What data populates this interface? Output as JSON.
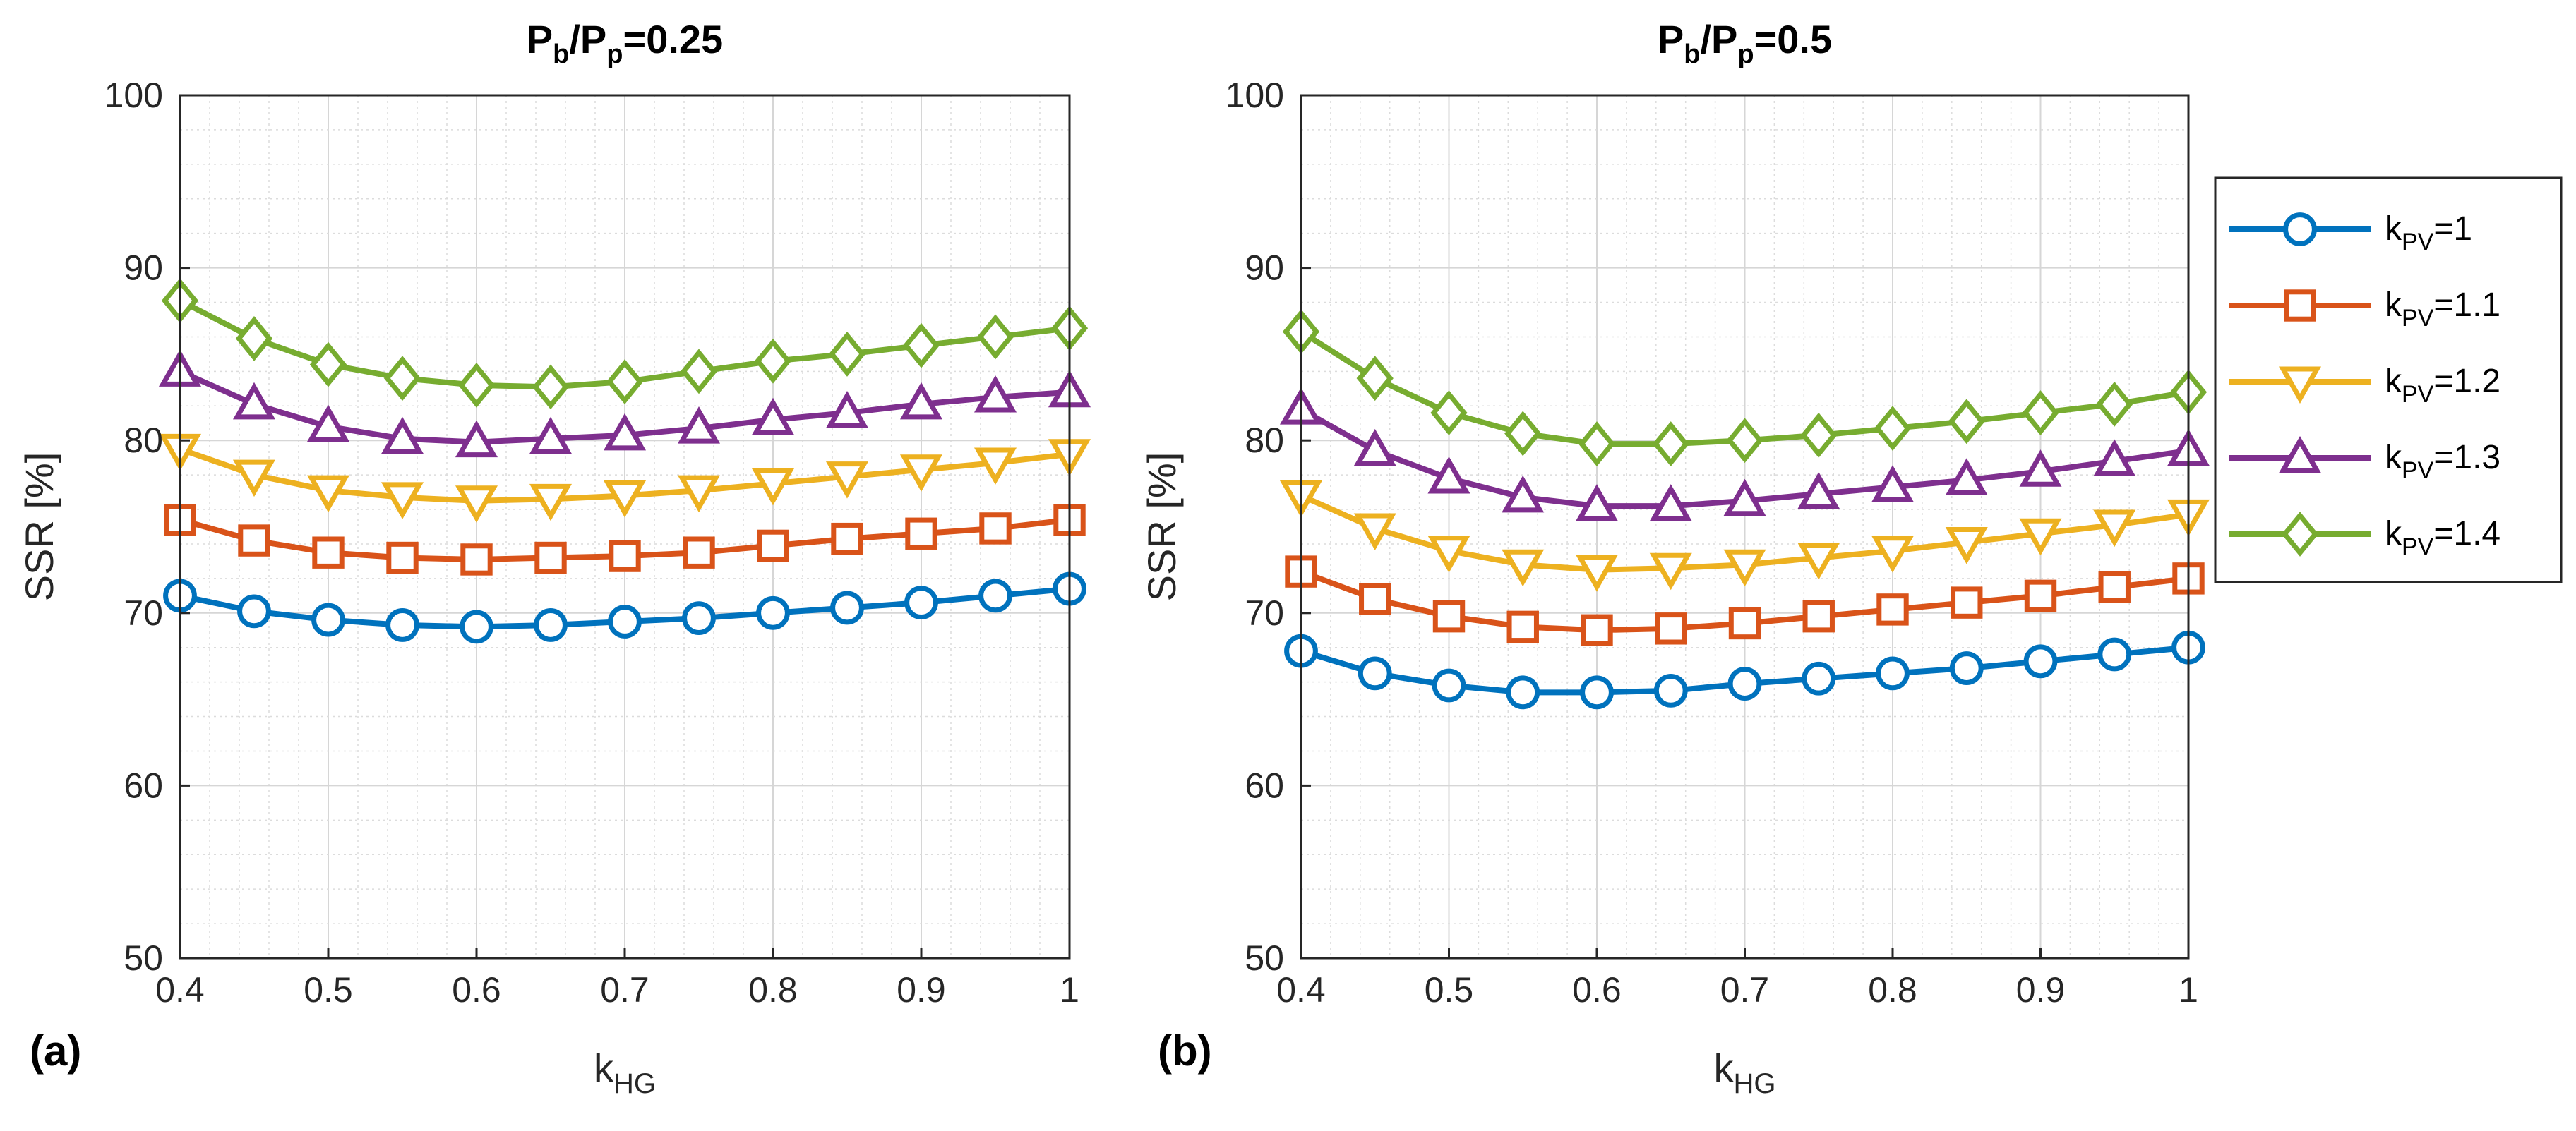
{
  "figure": {
    "colors": [
      "#0072BD",
      "#D95319",
      "#EDB120",
      "#7E2F8E",
      "#77AC30"
    ],
    "markers": [
      "circle-icon",
      "square-icon",
      "triangle-down-icon",
      "triangle-up-icon",
      "diamond-icon"
    ]
  },
  "chart_data": [
    {
      "type": "line",
      "panel_label": "(a)",
      "title": {
        "main": "P",
        "sub1": "b",
        "slash": "/P",
        "sub2": "p",
        "value": "=0.25"
      },
      "xlabel": {
        "main": "k",
        "sub": "HG"
      },
      "ylabel": "SSR [%]",
      "xlim": [
        0.4,
        1
      ],
      "ylim": [
        50,
        100
      ],
      "xticks": [
        "0.4",
        "0.5",
        "0.6",
        "0.7",
        "0.8",
        "0.9",
        "1"
      ],
      "yticks": [
        "50",
        "60",
        "70",
        "80",
        "90",
        "100"
      ],
      "grid": true,
      "x": [
        0.4,
        0.45,
        0.5,
        0.55,
        0.6,
        0.65,
        0.7,
        0.75,
        0.8,
        0.85,
        0.9,
        0.95,
        1.0
      ],
      "series": [
        {
          "name": "kPV=1",
          "values": [
            71.0,
            70.1,
            69.6,
            69.3,
            69.2,
            69.3,
            69.5,
            69.7,
            70.0,
            70.3,
            70.6,
            71.0,
            71.4
          ]
        },
        {
          "name": "kPV=1.1",
          "values": [
            75.4,
            74.2,
            73.5,
            73.2,
            73.1,
            73.2,
            73.3,
            73.5,
            73.9,
            74.3,
            74.6,
            74.9,
            75.4
          ]
        },
        {
          "name": "kPV=1.2",
          "values": [
            79.5,
            78.0,
            77.1,
            76.7,
            76.5,
            76.6,
            76.8,
            77.1,
            77.5,
            77.9,
            78.3,
            78.7,
            79.2
          ]
        },
        {
          "name": "kPV=1.3",
          "values": [
            84.0,
            82.1,
            80.8,
            80.1,
            79.9,
            80.1,
            80.3,
            80.7,
            81.2,
            81.6,
            82.1,
            82.5,
            82.8
          ]
        },
        {
          "name": "kPV=1.4",
          "values": [
            88.1,
            85.9,
            84.4,
            83.6,
            83.2,
            83.1,
            83.4,
            84.0,
            84.6,
            85.0,
            85.5,
            86.0,
            86.5
          ]
        }
      ]
    },
    {
      "type": "line",
      "panel_label": "(b)",
      "title": {
        "main": "P",
        "sub1": "b",
        "slash": "/P",
        "sub2": "p",
        "value": "=0.5"
      },
      "xlabel": {
        "main": "k",
        "sub": "HG"
      },
      "ylabel": "SSR [%]",
      "xlim": [
        0.4,
        1
      ],
      "ylim": [
        50,
        100
      ],
      "xticks": [
        "0.4",
        "0.5",
        "0.6",
        "0.7",
        "0.8",
        "0.9",
        "1"
      ],
      "yticks": [
        "50",
        "60",
        "70",
        "80",
        "90",
        "100"
      ],
      "grid": true,
      "legend": "right-outside",
      "x": [
        0.4,
        0.45,
        0.5,
        0.55,
        0.6,
        0.65,
        0.7,
        0.75,
        0.8,
        0.85,
        0.9,
        0.95,
        1.0
      ],
      "series": [
        {
          "name": "kPV=1",
          "values": [
            67.8,
            66.5,
            65.8,
            65.4,
            65.4,
            65.5,
            65.9,
            66.2,
            66.5,
            66.8,
            67.2,
            67.6,
            68.0
          ]
        },
        {
          "name": "kPV=1.1",
          "values": [
            72.4,
            70.8,
            69.8,
            69.2,
            69.0,
            69.1,
            69.4,
            69.8,
            70.2,
            70.6,
            71.0,
            71.5,
            72.0
          ]
        },
        {
          "name": "kPV=1.2",
          "values": [
            76.8,
            74.9,
            73.6,
            72.8,
            72.5,
            72.6,
            72.8,
            73.2,
            73.6,
            74.1,
            74.6,
            75.1,
            75.7
          ]
        },
        {
          "name": "kPV=1.3",
          "values": [
            81.8,
            79.4,
            77.8,
            76.7,
            76.2,
            76.2,
            76.5,
            76.9,
            77.3,
            77.7,
            78.2,
            78.8,
            79.4
          ]
        },
        {
          "name": "kPV=1.4",
          "values": [
            86.3,
            83.6,
            81.6,
            80.4,
            79.8,
            79.8,
            80.0,
            80.3,
            80.7,
            81.1,
            81.6,
            82.1,
            82.8
          ]
        }
      ]
    }
  ],
  "legend": {
    "entries": [
      {
        "main": "k",
        "sub": "PV",
        "value": "=1"
      },
      {
        "main": "k",
        "sub": "PV",
        "value": "=1.1"
      },
      {
        "main": "k",
        "sub": "PV",
        "value": "=1.2"
      },
      {
        "main": "k",
        "sub": "PV",
        "value": "=1.3"
      },
      {
        "main": "k",
        "sub": "PV",
        "value": "=1.4"
      }
    ]
  }
}
